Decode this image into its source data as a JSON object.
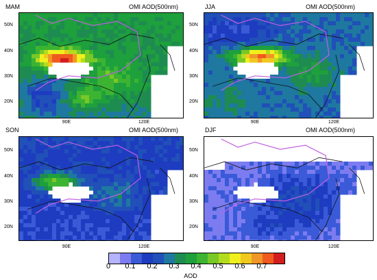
{
  "panels": [
    {
      "id": "mam",
      "title": "MAM",
      "variable": "OMI AOD(500nm)"
    },
    {
      "id": "jja",
      "title": "JJA",
      "variable": "OMI AOD(500nm)"
    },
    {
      "id": "son",
      "title": "SON",
      "variable": "OMI AOD(500nm)"
    },
    {
      "id": "djf",
      "title": "DJF",
      "variable": "OMI AOD(500nm)"
    }
  ],
  "axes": {
    "lat_labels": [
      "50N",
      "40N",
      "30N",
      "20N"
    ],
    "lon_labels": [
      "90E",
      "120E"
    ]
  },
  "colorbar": {
    "label": "AOD",
    "ticks": [
      "0",
      "0.1",
      "0.2",
      "0.3",
      "0.4",
      "0.5",
      "0.6",
      "0.7"
    ],
    "colors": [
      "#b4b4ff",
      "#7c7cf0",
      "#3a5ad8",
      "#1e3cc0",
      "#2050b8",
      "#1e78a0",
      "#1e8c50",
      "#1ea03c",
      "#3cb432",
      "#78c828",
      "#b4dc1e",
      "#f0f01e",
      "#f0c81e",
      "#f09628",
      "#f05a1e",
      "#d21e1e"
    ]
  },
  "map_colors": {
    "border": "#111111",
    "boundary": "#c060e0",
    "land_default": "#ffffff"
  }
}
